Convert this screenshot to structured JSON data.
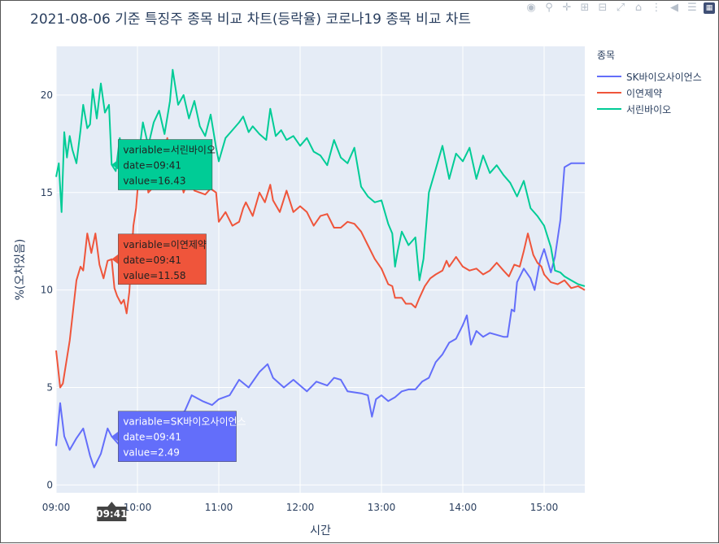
{
  "title": "2021-08-06 기준 특징주 종목 비교 차트(등락율) 코로나19 종목 비교 차트",
  "modebar": {
    "icons": [
      "camera-icon",
      "zoom-icon",
      "pan-icon",
      "zoom-in-icon",
      "zoom-out-icon",
      "autoscale-icon",
      "home-icon",
      "spike-lines-icon",
      "hover-closest-icon",
      "hover-compare-icon",
      "plotly-logo-icon"
    ]
  },
  "legend": {
    "title": "종목"
  },
  "colors": {
    "plot_bg": "#e5ecf6",
    "grid": "#ffffff",
    "text": "#2a3f5f"
  },
  "chart_data": {
    "type": "line",
    "title": "2021-08-06 기준 특징주 종목 비교 차트(등락율) 코로나19 종목 비교 차트",
    "xlabel": "시간",
    "ylabel": "%(오차있음)",
    "x_ticks": [
      "09:00",
      "10:00",
      "11:00",
      "12:00",
      "13:00",
      "14:00",
      "15:00"
    ],
    "y_ticks": [
      0,
      5,
      10,
      15,
      20
    ],
    "xlim": [
      "09:00",
      "15:30"
    ],
    "ylim": [
      -0.4,
      22.5
    ],
    "grid": true,
    "legend_position": "right",
    "series": [
      {
        "name": "SK바이오사이언스",
        "color": "#636efa",
        "points": [
          [
            "09:00",
            2.0
          ],
          [
            "09:03",
            4.2
          ],
          [
            "09:06",
            2.5
          ],
          [
            "09:10",
            1.8
          ],
          [
            "09:15",
            2.4
          ],
          [
            "09:20",
            2.9
          ],
          [
            "09:25",
            1.5
          ],
          [
            "09:28",
            0.9
          ],
          [
            "09:33",
            1.6
          ],
          [
            "09:38",
            2.9
          ],
          [
            "09:41",
            2.49
          ],
          [
            "09:46",
            2.1
          ],
          [
            "09:52",
            1.4
          ],
          [
            "09:58",
            1.5
          ],
          [
            "10:05",
            2.6
          ],
          [
            "10:12",
            2.8
          ],
          [
            "10:20",
            3.0
          ],
          [
            "10:28",
            3.4
          ],
          [
            "10:35",
            3.8
          ],
          [
            "10:40",
            4.6
          ],
          [
            "10:48",
            4.3
          ],
          [
            "10:55",
            4.1
          ],
          [
            "11:00",
            4.4
          ],
          [
            "11:08",
            4.6
          ],
          [
            "11:15",
            5.4
          ],
          [
            "11:22",
            5.0
          ],
          [
            "11:30",
            5.8
          ],
          [
            "11:36",
            6.2
          ],
          [
            "11:40",
            5.5
          ],
          [
            "11:48",
            5.0
          ],
          [
            "11:55",
            5.4
          ],
          [
            "12:00",
            5.1
          ],
          [
            "12:05",
            4.8
          ],
          [
            "12:12",
            5.3
          ],
          [
            "12:20",
            5.1
          ],
          [
            "12:25",
            5.5
          ],
          [
            "12:30",
            5.4
          ],
          [
            "12:35",
            4.8
          ],
          [
            "12:45",
            4.7
          ],
          [
            "12:50",
            4.6
          ],
          [
            "12:53",
            3.5
          ],
          [
            "12:56",
            4.4
          ],
          [
            "13:00",
            4.6
          ],
          [
            "13:05",
            4.3
          ],
          [
            "13:10",
            4.5
          ],
          [
            "13:15",
            4.8
          ],
          [
            "13:20",
            4.9
          ],
          [
            "13:25",
            4.9
          ],
          [
            "13:30",
            5.3
          ],
          [
            "13:35",
            5.5
          ],
          [
            "13:40",
            6.3
          ],
          [
            "13:45",
            6.7
          ],
          [
            "13:50",
            7.3
          ],
          [
            "13:55",
            7.5
          ],
          [
            "14:00",
            8.2
          ],
          [
            "14:03",
            8.7
          ],
          [
            "14:06",
            7.2
          ],
          [
            "14:10",
            7.9
          ],
          [
            "14:15",
            7.6
          ],
          [
            "14:20",
            7.8
          ],
          [
            "14:25",
            7.7
          ],
          [
            "14:30",
            7.6
          ],
          [
            "14:33",
            7.6
          ],
          [
            "14:36",
            9.0
          ],
          [
            "14:38",
            8.9
          ],
          [
            "14:40",
            10.4
          ],
          [
            "14:45",
            11.1
          ],
          [
            "14:50",
            10.6
          ],
          [
            "14:53",
            10.0
          ],
          [
            "14:57",
            11.5
          ],
          [
            "15:00",
            12.1
          ],
          [
            "15:05",
            10.9
          ],
          [
            "15:08",
            11.7
          ],
          [
            "15:12",
            13.6
          ],
          [
            "15:15",
            16.3
          ],
          [
            "15:20",
            16.5
          ],
          [
            "15:30",
            16.5
          ]
        ]
      },
      {
        "name": "이연제약",
        "color": "#ef553b",
        "points": [
          [
            "09:00",
            6.9
          ],
          [
            "09:03",
            5.0
          ],
          [
            "09:05",
            5.2
          ],
          [
            "09:10",
            7.4
          ],
          [
            "09:15",
            10.5
          ],
          [
            "09:18",
            11.2
          ],
          [
            "09:20",
            11.0
          ],
          [
            "09:23",
            12.9
          ],
          [
            "09:26",
            11.9
          ],
          [
            "09:29",
            12.9
          ],
          [
            "09:32",
            11.3
          ],
          [
            "09:35",
            10.6
          ],
          [
            "09:38",
            11.5
          ],
          [
            "09:41",
            11.58
          ],
          [
            "09:43",
            10.1
          ],
          [
            "09:45",
            9.7
          ],
          [
            "09:48",
            9.3
          ],
          [
            "09:50",
            9.5
          ],
          [
            "09:52",
            8.8
          ],
          [
            "09:54",
            9.9
          ],
          [
            "09:57",
            13.3
          ],
          [
            "09:59",
            14.2
          ],
          [
            "10:02",
            16.8
          ],
          [
            "10:05",
            17.3
          ],
          [
            "10:08",
            15.0
          ],
          [
            "10:12",
            15.3
          ],
          [
            "10:16",
            16.0
          ],
          [
            "10:22",
            17.8
          ],
          [
            "10:26",
            15.6
          ],
          [
            "10:30",
            16.2
          ],
          [
            "10:34",
            15.0
          ],
          [
            "10:38",
            15.7
          ],
          [
            "10:42",
            15.1
          ],
          [
            "10:46",
            15.0
          ],
          [
            "10:50",
            14.9
          ],
          [
            "10:54",
            15.2
          ],
          [
            "10:58",
            15.0
          ],
          [
            "11:00",
            13.5
          ],
          [
            "11:05",
            14.0
          ],
          [
            "11:10",
            13.3
          ],
          [
            "11:15",
            13.5
          ],
          [
            "11:18",
            14.2
          ],
          [
            "11:20",
            14.5
          ],
          [
            "11:25",
            13.8
          ],
          [
            "11:30",
            15.0
          ],
          [
            "11:34",
            14.5
          ],
          [
            "11:38",
            15.4
          ],
          [
            "11:40",
            14.6
          ],
          [
            "11:45",
            14.0
          ],
          [
            "11:50",
            15.1
          ],
          [
            "11:55",
            14.0
          ],
          [
            "12:00",
            14.3
          ],
          [
            "12:05",
            14.0
          ],
          [
            "12:10",
            13.3
          ],
          [
            "12:15",
            13.8
          ],
          [
            "12:20",
            13.9
          ],
          [
            "12:25",
            13.2
          ],
          [
            "12:30",
            13.2
          ],
          [
            "12:35",
            13.5
          ],
          [
            "12:40",
            13.4
          ],
          [
            "12:45",
            13.0
          ],
          [
            "12:50",
            12.3
          ],
          [
            "12:55",
            11.6
          ],
          [
            "13:00",
            11.1
          ],
          [
            "13:05",
            10.3
          ],
          [
            "13:08",
            10.2
          ],
          [
            "13:10",
            9.6
          ],
          [
            "13:15",
            9.6
          ],
          [
            "13:18",
            9.3
          ],
          [
            "13:22",
            9.3
          ],
          [
            "13:25",
            9.1
          ],
          [
            "13:28",
            9.6
          ],
          [
            "13:32",
            10.2
          ],
          [
            "13:36",
            10.6
          ],
          [
            "13:40",
            10.8
          ],
          [
            "13:45",
            11.0
          ],
          [
            "13:48",
            11.5
          ],
          [
            "13:50",
            11.2
          ],
          [
            "13:55",
            11.7
          ],
          [
            "14:00",
            11.2
          ],
          [
            "14:05",
            11.0
          ],
          [
            "14:10",
            11.1
          ],
          [
            "14:15",
            10.8
          ],
          [
            "14:20",
            11.0
          ],
          [
            "14:25",
            11.4
          ],
          [
            "14:30",
            11.0
          ],
          [
            "14:34",
            10.7
          ],
          [
            "14:38",
            11.3
          ],
          [
            "14:42",
            11.2
          ],
          [
            "14:45",
            12.0
          ],
          [
            "14:48",
            12.9
          ],
          [
            "14:52",
            11.8
          ],
          [
            "14:55",
            11.4
          ],
          [
            "14:58",
            11.2
          ],
          [
            "15:00",
            10.8
          ],
          [
            "15:05",
            10.4
          ],
          [
            "15:10",
            10.3
          ],
          [
            "15:15",
            10.5
          ],
          [
            "15:20",
            10.1
          ],
          [
            "15:25",
            10.2
          ],
          [
            "15:30",
            10.0
          ]
        ]
      },
      {
        "name": "서린바이오",
        "color": "#00cc96",
        "points": [
          [
            "09:00",
            15.8
          ],
          [
            "09:02",
            16.5
          ],
          [
            "09:04",
            14.0
          ],
          [
            "09:06",
            18.1
          ],
          [
            "09:08",
            16.8
          ],
          [
            "09:10",
            17.9
          ],
          [
            "09:12",
            17.2
          ],
          [
            "09:15",
            16.5
          ],
          [
            "09:18",
            18.2
          ],
          [
            "09:20",
            19.5
          ],
          [
            "09:23",
            18.3
          ],
          [
            "09:25",
            18.5
          ],
          [
            "09:27",
            20.3
          ],
          [
            "09:30",
            18.8
          ],
          [
            "09:33",
            20.6
          ],
          [
            "09:36",
            19.1
          ],
          [
            "09:39",
            19.5
          ],
          [
            "09:41",
            16.43
          ],
          [
            "09:44",
            16.1
          ],
          [
            "09:47",
            17.8
          ],
          [
            "09:50",
            15.8
          ],
          [
            "09:53",
            17.0
          ],
          [
            "09:56",
            16.2
          ],
          [
            "10:00",
            16.4
          ],
          [
            "10:04",
            18.6
          ],
          [
            "10:08",
            17.4
          ],
          [
            "10:12",
            18.6
          ],
          [
            "10:16",
            19.2
          ],
          [
            "10:20",
            18.0
          ],
          [
            "10:24",
            19.7
          ],
          [
            "10:26",
            21.3
          ],
          [
            "10:30",
            19.5
          ],
          [
            "10:34",
            20.0
          ],
          [
            "10:38",
            18.8
          ],
          [
            "10:42",
            19.7
          ],
          [
            "10:46",
            18.4
          ],
          [
            "10:50",
            17.9
          ],
          [
            "10:54",
            19.0
          ],
          [
            "10:58",
            17.3
          ],
          [
            "11:00",
            16.6
          ],
          [
            "11:05",
            17.8
          ],
          [
            "11:10",
            18.2
          ],
          [
            "11:15",
            18.6
          ],
          [
            "11:18",
            18.9
          ],
          [
            "11:22",
            18.1
          ],
          [
            "11:25",
            18.4
          ],
          [
            "11:30",
            18.0
          ],
          [
            "11:35",
            17.7
          ],
          [
            "11:38",
            19.3
          ],
          [
            "11:42",
            17.9
          ],
          [
            "11:46",
            18.2
          ],
          [
            "11:50",
            17.7
          ],
          [
            "11:55",
            17.9
          ],
          [
            "12:00",
            17.4
          ],
          [
            "12:05",
            17.8
          ],
          [
            "12:10",
            17.1
          ],
          [
            "12:15",
            16.9
          ],
          [
            "12:20",
            16.4
          ],
          [
            "12:25",
            17.7
          ],
          [
            "12:30",
            16.8
          ],
          [
            "12:35",
            16.5
          ],
          [
            "12:40",
            17.3
          ],
          [
            "12:45",
            15.3
          ],
          [
            "12:50",
            14.8
          ],
          [
            "12:55",
            14.5
          ],
          [
            "13:00",
            14.6
          ],
          [
            "13:05",
            13.4
          ],
          [
            "13:08",
            12.9
          ],
          [
            "13:10",
            11.2
          ],
          [
            "13:12",
            12.0
          ],
          [
            "13:15",
            13.0
          ],
          [
            "13:20",
            12.3
          ],
          [
            "13:25",
            12.7
          ],
          [
            "13:28",
            10.5
          ],
          [
            "13:31",
            11.6
          ],
          [
            "13:35",
            15.0
          ],
          [
            "13:40",
            16.2
          ],
          [
            "13:45",
            17.4
          ],
          [
            "13:50",
            15.7
          ],
          [
            "13:55",
            17.0
          ],
          [
            "14:00",
            16.6
          ],
          [
            "14:05",
            17.3
          ],
          [
            "14:10",
            15.7
          ],
          [
            "14:15",
            16.9
          ],
          [
            "14:20",
            16.0
          ],
          [
            "14:25",
            16.4
          ],
          [
            "14:30",
            15.9
          ],
          [
            "14:35",
            15.5
          ],
          [
            "14:40",
            14.8
          ],
          [
            "14:45",
            15.6
          ],
          [
            "14:50",
            14.2
          ],
          [
            "14:55",
            13.8
          ],
          [
            "15:00",
            13.3
          ],
          [
            "15:05",
            12.2
          ],
          [
            "15:08",
            11.0
          ],
          [
            "15:12",
            10.9
          ],
          [
            "15:15",
            10.7
          ],
          [
            "15:20",
            10.5
          ],
          [
            "15:25",
            10.3
          ],
          [
            "15:30",
            10.2
          ]
        ]
      }
    ],
    "hover": {
      "x_label": "09:41",
      "tooltips": [
        {
          "series": "서린바이오",
          "lines": [
            "variable=서린바이오",
            "date=09:41",
            "value=16.43"
          ],
          "value": 16.43
        },
        {
          "series": "이연제약",
          "lines": [
            "variable=이연제약",
            "date=09:41",
            "value=11.58"
          ],
          "value": 11.58
        },
        {
          "series": "SK바이오사이언스",
          "lines": [
            "variable=SK바이오사이언스",
            "date=09:41",
            "value=2.49"
          ],
          "value": 2.49
        }
      ]
    }
  }
}
